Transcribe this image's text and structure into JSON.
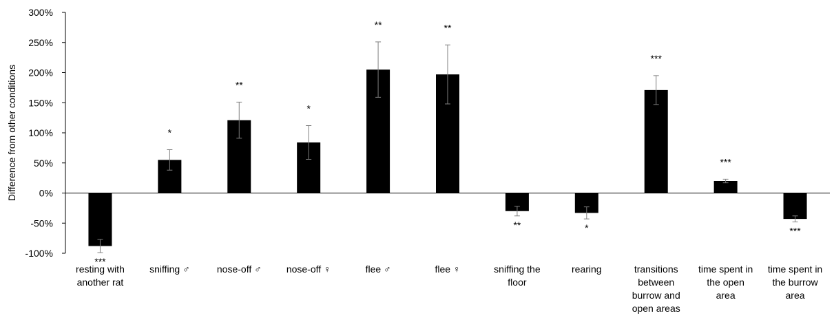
{
  "chart_data": {
    "type": "bar",
    "title": "",
    "xlabel": "",
    "ylabel": "Difference from other conditions",
    "ylim": [
      -100,
      300
    ],
    "yticks": [
      -100,
      -50,
      0,
      50,
      100,
      150,
      200,
      250,
      300
    ],
    "ytick_labels": [
      "-100%",
      "-50%",
      "0%",
      "50%",
      "100%",
      "150%",
      "200%",
      "250%",
      "300%"
    ],
    "grid": false,
    "legend": "none",
    "bar_color": "#000000",
    "categories": [
      [
        "resting with",
        "another rat"
      ],
      [
        "sniffing ♂"
      ],
      [
        "nose-off ♂"
      ],
      [
        "nose-off ♀"
      ],
      [
        "flee ♂"
      ],
      [
        "flee ♀"
      ],
      [
        "sniffing the",
        "floor"
      ],
      [
        "rearing"
      ],
      [
        "transitions",
        "between",
        "burrow and",
        "open areas"
      ],
      [
        "time spent in",
        "the open",
        "area"
      ],
      [
        "time spent in",
        "the burrow",
        "area"
      ]
    ],
    "values": [
      -88,
      55,
      121,
      84,
      205,
      197,
      -30,
      -33,
      171,
      20,
      -43
    ],
    "errors": [
      11,
      17,
      30,
      28,
      46,
      49,
      8,
      10,
      24,
      3,
      5
    ],
    "significance": [
      "***",
      "*",
      "**",
      "*",
      "**",
      "**",
      "**",
      "*",
      "***",
      "***",
      "***"
    ]
  }
}
